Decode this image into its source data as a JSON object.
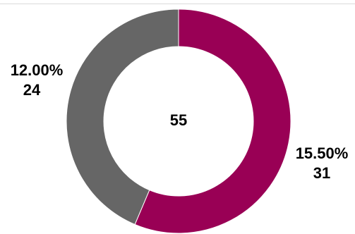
{
  "chart_data": {
    "type": "pie",
    "variant": "donut",
    "center_label": "55",
    "slices": [
      {
        "value": 31,
        "percent_label": "15.50%",
        "count_label": "31",
        "color": "#990055"
      },
      {
        "value": 24,
        "percent_label": "12.00%",
        "count_label": "24",
        "color": "#666666"
      }
    ],
    "start_angle_deg": 0,
    "direction": "clockwise",
    "legend": "none",
    "grid": false
  }
}
